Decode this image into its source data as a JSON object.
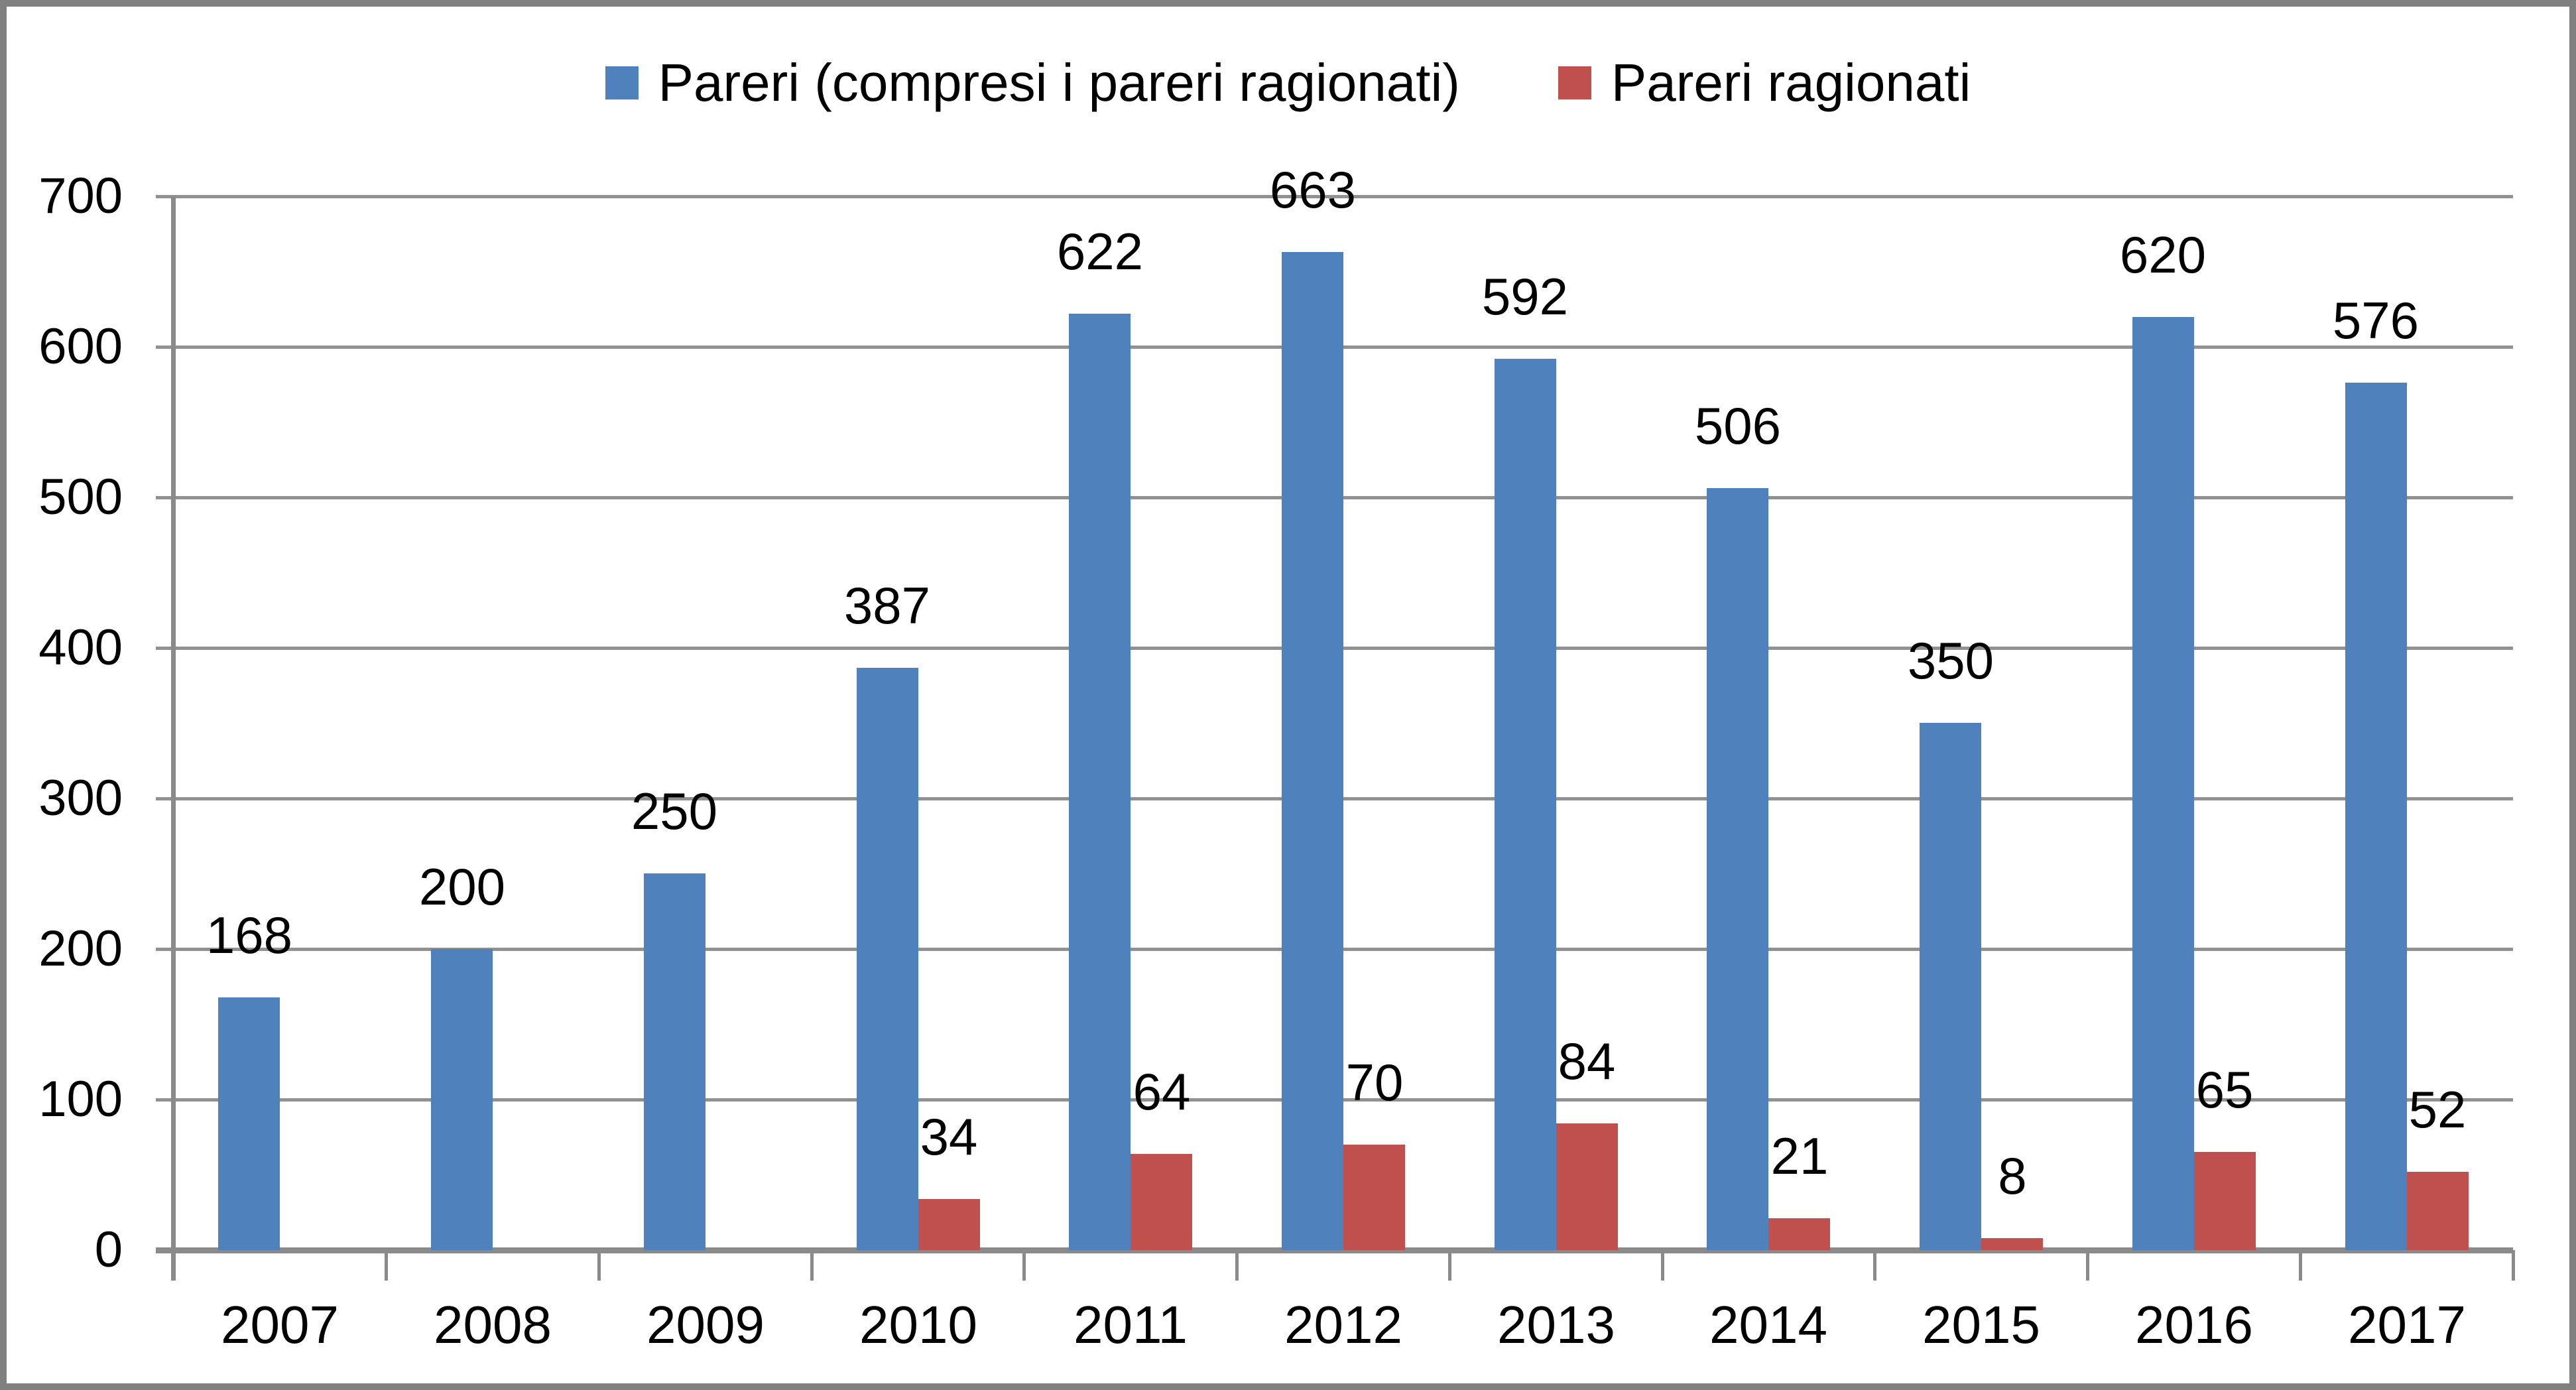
{
  "colors": {
    "series_blue": "#4F81BD",
    "series_red": "#C0504D",
    "gridline": "#919191",
    "axis": "#8A8A8A",
    "frame_border": "#808080",
    "text": "#000000",
    "background": "#FFFFFF"
  },
  "legend": {
    "items": [
      {
        "label": "Pareri (compresi i pareri ragionati)",
        "color": "#4F81BD"
      },
      {
        "label": "Pareri ragionati",
        "color": "#C0504D"
      }
    ]
  },
  "chart_data": {
    "type": "bar",
    "title": "",
    "categories": [
      "2007",
      "2008",
      "2009",
      "2010",
      "2011",
      "2012",
      "2013",
      "2014",
      "2015",
      "2016",
      "2017"
    ],
    "series": [
      {
        "name": "Pareri (compresi i pareri ragionati)",
        "color": "#4F81BD",
        "values": [
          168,
          200,
          250,
          387,
          622,
          663,
          592,
          506,
          350,
          620,
          576
        ]
      },
      {
        "name": "Pareri ragionati",
        "color": "#C0504D",
        "values": [
          null,
          null,
          null,
          34,
          64,
          70,
          84,
          21,
          8,
          65,
          52
        ]
      }
    ],
    "ylim": [
      0,
      700
    ],
    "yticks": [
      0,
      100,
      200,
      300,
      400,
      500,
      600,
      700
    ],
    "xlabel": "",
    "ylabel": "",
    "grid": true,
    "data_labels": true,
    "legend_position": "top"
  }
}
